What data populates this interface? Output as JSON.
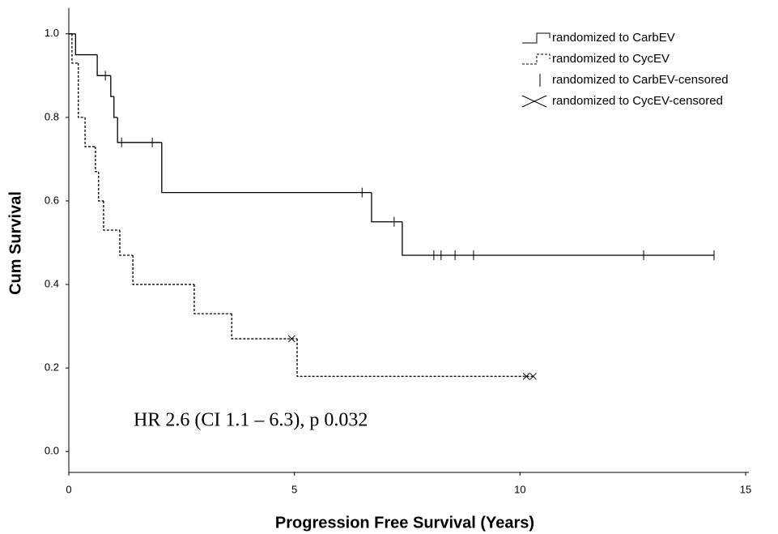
{
  "chart_data": {
    "type": "step",
    "xlabel": "Progression Free Survival (Years)",
    "ylabel": "Cum Survival",
    "annotation": "HR 2.6 (CI 1.1 – 6.3), p 0.032",
    "xlim": [
      0,
      15
    ],
    "ylim": [
      -0.05,
      1.05
    ],
    "xticks": [
      0,
      5,
      10,
      15
    ],
    "yticks": [
      {
        "value": 0,
        "label": "0.0"
      },
      0.2,
      0.4,
      0.6,
      0.8,
      {
        "value": 1,
        "label": "1.0"
      }
    ],
    "legend": "upper right",
    "series": [
      {
        "name": "randomized to CarbEV",
        "color": "#000000",
        "line_style": "solid",
        "x": [
          0,
          0.15,
          0.63,
          0.93,
          1.0,
          1.08,
          2.06,
          6.71,
          7.39,
          14.3
        ],
        "values": [
          1.0,
          0.95,
          0.9,
          0.85,
          0.8,
          0.74,
          0.62,
          0.55,
          0.47,
          0.47
        ]
      },
      {
        "name": "randomized to CycEV",
        "color": "#000000",
        "line_style": "dashed",
        "x": [
          0,
          0.07,
          0.21,
          0.36,
          0.59,
          0.66,
          0.77,
          1.13,
          1.42,
          2.78,
          3.61,
          5.06,
          10.3
        ],
        "values": [
          1.0,
          0.93,
          0.8,
          0.73,
          0.67,
          0.6,
          0.53,
          0.47,
          0.4,
          0.33,
          0.27,
          0.18,
          0.18
        ]
      },
      {
        "name": "randomized to CarbEV-censored",
        "color": "#000000",
        "marker": "tick",
        "x": [
          0.81,
          1.17,
          1.85,
          6.5,
          7.21,
          8.09,
          8.25,
          8.56,
          8.97,
          12.74,
          14.3
        ],
        "values": [
          0.9,
          0.74,
          0.74,
          0.62,
          0.55,
          0.47,
          0.47,
          0.47,
          0.47,
          0.47,
          0.47
        ]
      },
      {
        "name": "randomized to CycEV-censored",
        "color": "#000000",
        "marker": "cross",
        "x": [
          4.94,
          10.14,
          10.29
        ],
        "values": [
          0.27,
          0.18,
          0.18
        ]
      }
    ]
  }
}
